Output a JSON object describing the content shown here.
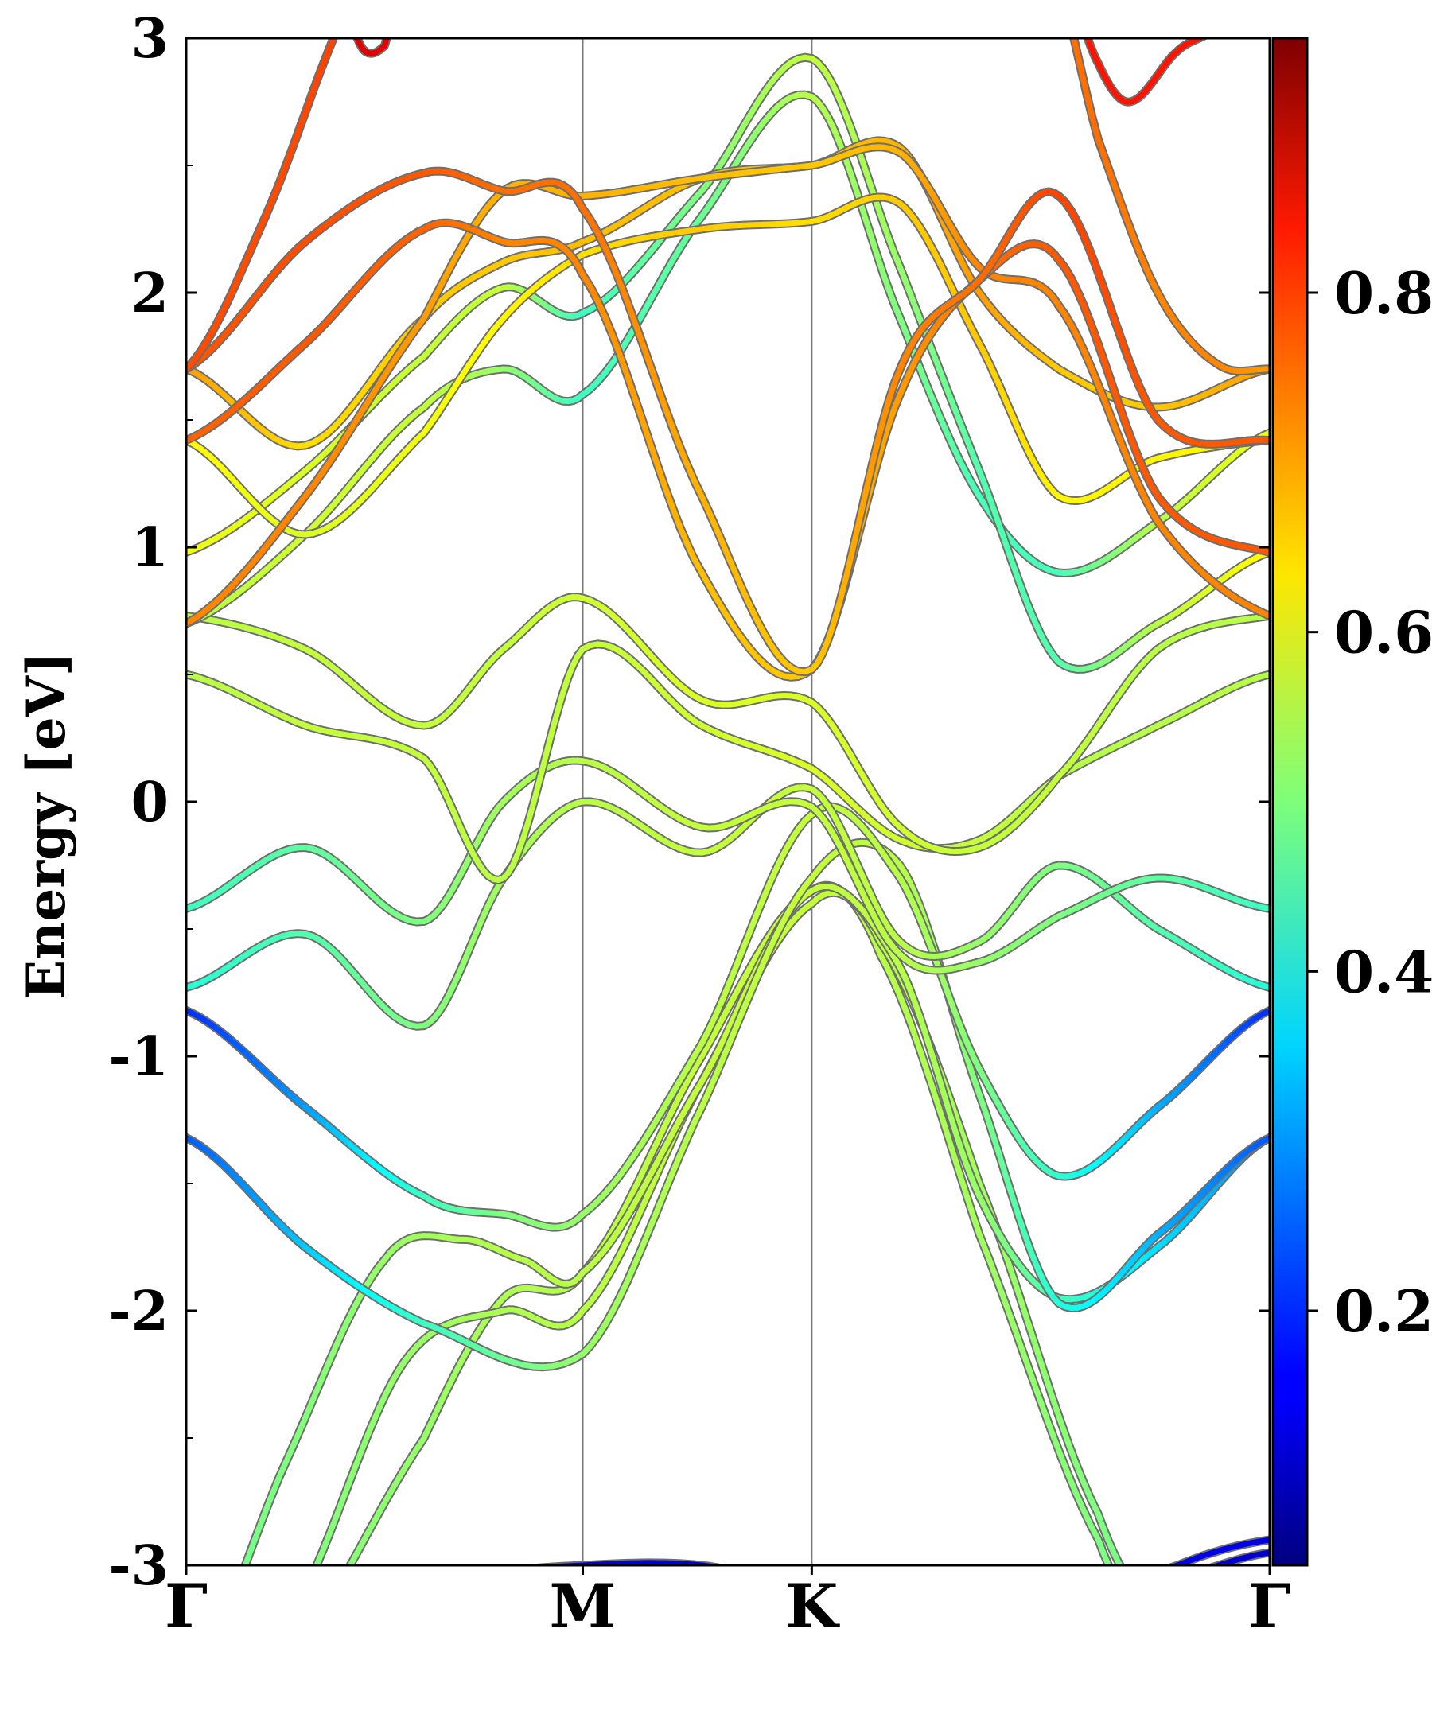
{
  "chart_data": {
    "type": "line",
    "title": "",
    "xlabel": "",
    "ylabel": "Energy [eV]",
    "ylim": [
      -3,
      3
    ],
    "yticks": [
      -3,
      -2,
      -1,
      0,
      1,
      2,
      3
    ],
    "ytick_labels": [
      "-3",
      "-2",
      "-1",
      "0",
      "1",
      "2",
      "3"
    ],
    "kpath": [
      {
        "label": "Γ",
        "pos": 0.0
      },
      {
        "label": "M",
        "pos": 1.0
      },
      {
        "label": "K",
        "pos": 1.5774
      },
      {
        "label": "Γ",
        "pos": 2.7321
      }
    ],
    "colorbar": {
      "cmap": "jet",
      "range": [
        0.05,
        0.95
      ],
      "ticks": [
        0.2,
        0.4,
        0.6,
        0.8
      ],
      "tick_labels": [
        "0.2",
        "0.4",
        "0.6",
        "0.8"
      ]
    },
    "bands": [
      {
        "name": "band-1",
        "x": [
          0,
          0.3,
          0.6,
          1.0,
          1.3,
          1.5774,
          1.9,
          2.2,
          2.5,
          2.7321
        ],
        "y": [
          -3.15,
          -3.1,
          -3.05,
          -3.0,
          -3.0,
          -3.1,
          -3.2,
          -3.15,
          -3.05,
          -2.95
        ],
        "w": [
          0.12,
          0.12,
          0.12,
          0.12,
          0.12,
          0.12,
          0.12,
          0.12,
          0.12,
          0.12
        ]
      },
      {
        "name": "band-2",
        "x": [
          0,
          0.6,
          1.0,
          1.3,
          1.5774,
          1.9,
          2.2,
          2.5,
          2.7321
        ],
        "y": [
          -3.2,
          -3.2,
          -3.2,
          -3.2,
          -3.2,
          -3.2,
          -3.2,
          -3.0,
          -2.9
        ],
        "w": [
          0.14,
          0.14,
          0.14,
          0.14,
          0.14,
          0.14,
          0.14,
          0.14,
          0.14
        ]
      },
      {
        "name": "band-3",
        "x": [
          0,
          0.3,
          0.6,
          0.8,
          1.0,
          1.3,
          1.5774,
          1.75,
          2.0,
          2.3,
          2.5,
          2.7321
        ],
        "y": [
          -3.9,
          -3.3,
          -2.5,
          -1.95,
          -1.85,
          -1.0,
          -0.35,
          -0.6,
          -1.7,
          -2.9,
          -3.4,
          -3.7
        ],
        "w": [
          0.5,
          0.5,
          0.52,
          0.54,
          0.55,
          0.56,
          0.56,
          0.55,
          0.53,
          0.5,
          0.48,
          0.47
        ]
      },
      {
        "name": "band-4",
        "x": [
          0,
          0.3,
          0.55,
          0.8,
          1.0,
          1.3,
          1.5774,
          1.75,
          2.0,
          2.3,
          2.5,
          2.7321
        ],
        "y": [
          -3.8,
          -3.1,
          -2.2,
          -2.0,
          -2.0,
          -1.1,
          -0.4,
          -0.55,
          -1.5,
          -2.8,
          -3.3,
          -3.6
        ],
        "w": [
          0.5,
          0.5,
          0.52,
          0.54,
          0.55,
          0.56,
          0.56,
          0.55,
          0.53,
          0.5,
          0.48,
          0.47
        ]
      },
      {
        "name": "band-5",
        "x": [
          0,
          0.25,
          0.5,
          0.7,
          0.85,
          1.0,
          1.3,
          1.5774,
          1.8,
          2.0,
          2.2,
          2.45,
          2.7321
        ],
        "y": [
          -3.5,
          -2.6,
          -1.8,
          -1.72,
          -1.8,
          -1.85,
          -1.1,
          -0.35,
          -0.65,
          -1.55,
          -1.95,
          -1.75,
          -1.32
        ],
        "w": [
          0.48,
          0.5,
          0.52,
          0.54,
          0.55,
          0.55,
          0.56,
          0.56,
          0.55,
          0.52,
          0.45,
          0.36,
          0.28
        ]
      },
      {
        "name": "band-6",
        "x": [
          0,
          0.3,
          0.6,
          1.0,
          1.3,
          1.5774,
          1.8,
          2.0,
          2.2,
          2.45,
          2.7321
        ],
        "y": [
          -1.32,
          -1.75,
          -2.05,
          -2.17,
          -1.2,
          -0.3,
          -0.25,
          -1.15,
          -1.97,
          -1.7,
          -1.32
        ],
        "w": [
          0.24,
          0.34,
          0.44,
          0.52,
          0.55,
          0.56,
          0.55,
          0.5,
          0.42,
          0.32,
          0.24
        ]
      },
      {
        "name": "band-7",
        "x": [
          0,
          0.3,
          0.6,
          0.8,
          1.0,
          1.3,
          1.5774,
          1.8,
          2.0,
          2.2,
          2.45,
          2.7321
        ],
        "y": [
          -0.82,
          -1.2,
          -1.55,
          -1.62,
          -1.62,
          -0.95,
          -0.05,
          -0.3,
          -1.05,
          -1.47,
          -1.2,
          -0.82
        ],
        "w": [
          0.2,
          0.3,
          0.44,
          0.5,
          0.52,
          0.55,
          0.56,
          0.55,
          0.5,
          0.43,
          0.32,
          0.2
        ]
      },
      {
        "name": "band-8",
        "x": [
          0,
          0.3,
          0.6,
          0.8,
          1.0,
          1.3,
          1.5774,
          1.8,
          2.0,
          2.2,
          2.45,
          2.7321
        ],
        "y": [
          -0.73,
          -0.52,
          -0.88,
          -0.3,
          0.0,
          -0.2,
          0.05,
          -0.55,
          -0.55,
          -0.25,
          -0.5,
          -0.73
        ],
        "w": [
          0.42,
          0.46,
          0.5,
          0.53,
          0.55,
          0.56,
          0.56,
          0.55,
          0.52,
          0.5,
          0.46,
          0.42
        ]
      },
      {
        "name": "band-9",
        "x": [
          0,
          0.3,
          0.6,
          0.8,
          1.0,
          1.3,
          1.5774,
          1.8,
          2.0,
          2.2,
          2.45,
          2.7321
        ],
        "y": [
          -0.42,
          -0.18,
          -0.47,
          0.0,
          0.16,
          -0.1,
          -0.02,
          -0.6,
          -0.63,
          -0.45,
          -0.3,
          -0.42
        ],
        "w": [
          0.44,
          0.47,
          0.5,
          0.53,
          0.55,
          0.56,
          0.56,
          0.55,
          0.52,
          0.5,
          0.47,
          0.44
        ]
      },
      {
        "name": "band-10",
        "x": [
          0,
          0.3,
          0.6,
          0.8,
          1.0,
          1.3,
          1.5774,
          1.8,
          2.0,
          2.2,
          2.45,
          2.7321
        ],
        "y": [
          0.5,
          0.3,
          0.17,
          -0.3,
          0.6,
          0.3,
          0.13,
          -0.15,
          -0.15,
          0.1,
          0.3,
          0.5
        ],
        "w": [
          0.55,
          0.56,
          0.56,
          0.55,
          0.56,
          0.57,
          0.58,
          0.57,
          0.56,
          0.55,
          0.55,
          0.55
        ]
      },
      {
        "name": "band-11",
        "x": [
          0,
          0.3,
          0.6,
          0.8,
          1.0,
          1.3,
          1.5774,
          1.8,
          2.0,
          2.2,
          2.45,
          2.7321
        ],
        "y": [
          0.73,
          0.6,
          0.3,
          0.6,
          0.8,
          0.4,
          0.39,
          -0.1,
          -0.18,
          0.1,
          0.6,
          0.73
        ],
        "w": [
          0.55,
          0.56,
          0.56,
          0.56,
          0.57,
          0.58,
          0.58,
          0.57,
          0.56,
          0.56,
          0.55,
          0.55
        ]
      },
      {
        "name": "band-12",
        "x": [
          0,
          0.3,
          0.6,
          0.8,
          1.0,
          1.3,
          1.5774,
          1.8,
          2.0,
          2.2,
          2.45,
          2.7321
        ],
        "y": [
          0.7,
          1.05,
          1.55,
          1.7,
          1.6,
          2.3,
          2.77,
          1.9,
          1.2,
          0.9,
          1.1,
          1.45
        ],
        "w": [
          0.55,
          0.57,
          0.56,
          0.52,
          0.44,
          0.48,
          0.55,
          0.5,
          0.45,
          0.45,
          0.55,
          0.6
        ]
      },
      {
        "name": "band-13",
        "x": [
          0,
          0.3,
          0.6,
          0.8,
          1.0,
          1.3,
          1.5774,
          1.8,
          2.0,
          2.2,
          2.45,
          2.7321
        ],
        "y": [
          0.98,
          1.3,
          1.75,
          2.02,
          1.92,
          2.4,
          2.92,
          2.1,
          1.3,
          0.55,
          0.7,
          0.98
        ],
        "w": [
          0.6,
          0.58,
          0.56,
          0.56,
          0.44,
          0.5,
          0.56,
          0.52,
          0.46,
          0.46,
          0.55,
          0.62
        ]
      },
      {
        "name": "band-14",
        "x": [
          0,
          0.3,
          0.6,
          0.8,
          1.0,
          1.3,
          1.5774,
          1.8,
          2.0,
          2.2,
          2.45,
          2.7321
        ],
        "y": [
          1.42,
          1.05,
          1.45,
          1.9,
          2.15,
          2.25,
          2.28,
          2.35,
          1.8,
          1.2,
          1.35,
          1.42
        ],
        "w": [
          0.62,
          0.58,
          0.6,
          0.62,
          0.64,
          0.66,
          0.64,
          0.66,
          0.66,
          0.62,
          0.62,
          0.62
        ]
      },
      {
        "name": "band-15",
        "x": [
          0,
          0.3,
          0.6,
          0.8,
          1.0,
          1.3,
          1.5774,
          1.8,
          2.0,
          2.2,
          2.45,
          2.7321
        ],
        "y": [
          1.7,
          1.4,
          1.9,
          2.12,
          2.2,
          2.45,
          2.5,
          2.57,
          2.0,
          1.7,
          1.55,
          1.7
        ],
        "w": [
          0.7,
          0.64,
          0.66,
          0.66,
          0.67,
          0.67,
          0.66,
          0.68,
          0.7,
          0.66,
          0.66,
          0.7
        ]
      },
      {
        "name": "band-16",
        "x": [
          0,
          0.3,
          0.6,
          0.8,
          1.0,
          1.3,
          1.5774,
          1.8,
          2.0,
          2.2,
          2.45,
          2.7321
        ],
        "y": [
          0.7,
          1.2,
          1.9,
          2.4,
          2.38,
          2.45,
          2.5,
          2.55,
          2.1,
          1.95,
          1.1,
          0.73
        ],
        "w": [
          0.72,
          0.72,
          0.7,
          0.68,
          0.68,
          0.67,
          0.66,
          0.68,
          0.72,
          0.72,
          0.72,
          0.72
        ]
      },
      {
        "name": "band-17",
        "x": [
          0,
          0.3,
          0.6,
          0.8,
          1.0,
          1.3,
          1.5774,
          1.8,
          2.0,
          2.2,
          2.45,
          2.7321
        ],
        "y": [
          1.42,
          1.8,
          2.25,
          2.2,
          2.07,
          0.9,
          0.52,
          1.6,
          2.05,
          2.13,
          1.2,
          0.98
        ],
        "w": [
          0.75,
          0.76,
          0.75,
          0.72,
          0.72,
          0.67,
          0.66,
          0.7,
          0.74,
          0.76,
          0.76,
          0.76
        ]
      },
      {
        "name": "band-18",
        "x": [
          0,
          0.3,
          0.6,
          0.8,
          1.0,
          1.3,
          1.5774,
          1.8,
          2.0,
          2.2,
          2.45,
          2.7321
        ],
        "y": [
          1.7,
          2.2,
          2.47,
          2.4,
          2.33,
          1.2,
          0.52,
          1.7,
          2.05,
          2.38,
          1.5,
          1.42
        ],
        "w": [
          0.76,
          0.77,
          0.76,
          0.74,
          0.74,
          0.68,
          0.66,
          0.72,
          0.74,
          0.78,
          0.76,
          0.76
        ]
      },
      {
        "name": "band-19",
        "x": [
          0,
          0.2,
          0.4,
          0.6
        ],
        "y": [
          1.7,
          2.3,
          3.1,
          3.6
        ],
        "w": [
          0.77,
          0.77,
          0.78,
          0.78
        ]
      },
      {
        "name": "band-20",
        "x": [
          0.4,
          0.45,
          0.5,
          0.52
        ],
        "y": [
          3.1,
          2.95,
          2.97,
          3.1
        ],
        "w": [
          0.86,
          0.86,
          0.86,
          0.86
        ]
      },
      {
        "name": "band-21",
        "x": [
          2.2,
          2.3,
          2.38,
          2.5,
          2.6,
          2.7321
        ],
        "y": [
          3.3,
          2.9,
          2.75,
          2.95,
          3.05,
          3.3
        ],
        "w": [
          0.82,
          0.82,
          0.82,
          0.82,
          0.82,
          0.82
        ]
      },
      {
        "name": "band-22",
        "x": [
          2.18,
          2.3,
          2.45,
          2.6,
          2.7321
        ],
        "y": [
          3.3,
          2.6,
          2.0,
          1.72,
          1.7
        ],
        "w": [
          0.74,
          0.74,
          0.72,
          0.72,
          0.7
        ]
      }
    ]
  }
}
